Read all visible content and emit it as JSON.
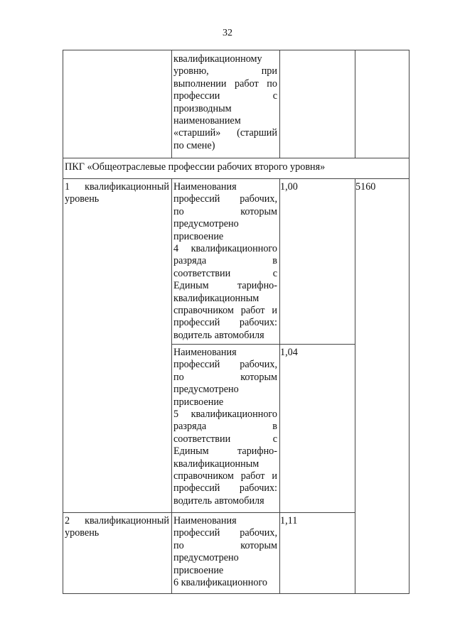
{
  "page_number": "32",
  "rows": [
    {
      "level": [],
      "description": [
        "квалификационному",
        "уровню, при",
        "выполнении работ по",
        "профессии с",
        "производным",
        "наименованием",
        "«старший» (старший",
        "по смене)"
      ],
      "coefficient": "",
      "salary": ""
    },
    {
      "group_header": "ПКГ «Общеотраслевые профессии рабочих второго уровня»"
    },
    {
      "level": [
        "1 квалификационный",
        "уровень"
      ],
      "description": [
        "Наименования",
        "профессий рабочих,",
        "по которым",
        "предусмотрено",
        "присвоение",
        "4 квалификационного",
        "разряда в",
        "соответствии с",
        "Единым тарифно-",
        "квалификационным",
        "справочником работ и",
        "профессий рабочих:",
        "водитель автомобиля"
      ],
      "coefficient": "1,00",
      "salary": "5160"
    },
    {
      "description": [
        "Наименования",
        "профессий рабочих,",
        "по которым",
        "предусмотрено",
        "присвоение",
        "5 квалификационного",
        "разряда в",
        "соответствии с",
        "Единым тарифно-",
        "квалификационным",
        "справочником работ и",
        "профессий рабочих:",
        "водитель автомобиля"
      ],
      "coefficient": "1,04"
    },
    {
      "level": [
        "2 квалификационный",
        "уровень"
      ],
      "description": [
        "Наименования",
        "профессий рабочих,",
        "по которым",
        "предусмотрено",
        "присвоение",
        "6 квалификационного"
      ],
      "coefficient": "1,11"
    }
  ]
}
